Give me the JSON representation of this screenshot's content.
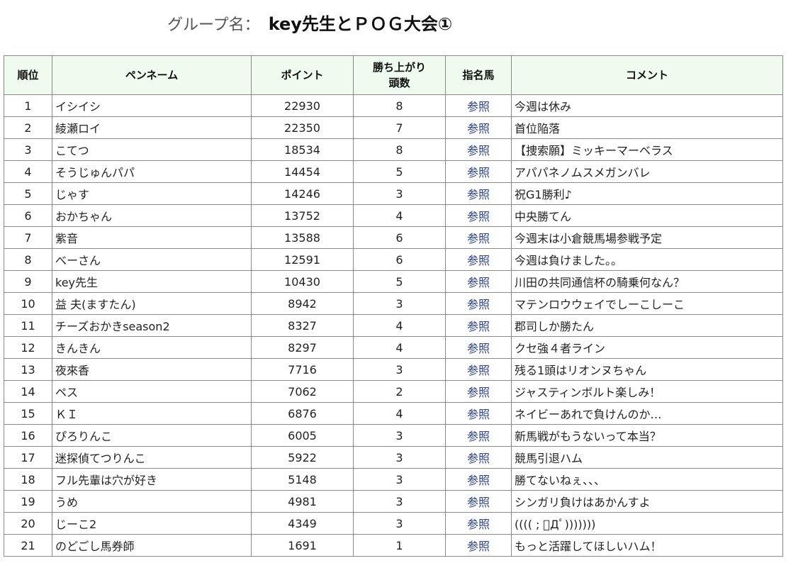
{
  "header": {
    "group_label": "グループ名：",
    "group_name": "key先生とＰＯＧ大会①"
  },
  "table": {
    "columns": {
      "rank": "順位",
      "penname": "ペンネーム",
      "points": "ポイント",
      "wins_line1": "勝ち上がり",
      "wins_line2": "頭数",
      "horses": "指名馬",
      "comment": "コメント"
    },
    "link_label": "参照",
    "rows": [
      {
        "rank": "1",
        "name": "イシイシ",
        "points": "22930",
        "wins": "8",
        "comment": "今週は休み"
      },
      {
        "rank": "2",
        "name": "綾瀬ロイ",
        "points": "22350",
        "wins": "7",
        "comment": "首位陥落"
      },
      {
        "rank": "3",
        "name": "こてつ",
        "points": "18534",
        "wins": "8",
        "comment": "【捜索願】ミッキーマーベラス"
      },
      {
        "rank": "4",
        "name": "そうじゅんパパ",
        "points": "14454",
        "wins": "5",
        "comment": "アパパネノムスメガンバレ"
      },
      {
        "rank": "5",
        "name": "じゃす",
        "points": "14246",
        "wins": "3",
        "comment": "祝G1勝利♪"
      },
      {
        "rank": "6",
        "name": "おかちゃん",
        "points": "13752",
        "wins": "4",
        "comment": "中央勝てん"
      },
      {
        "rank": "7",
        "name": "紫音",
        "points": "13588",
        "wins": "6",
        "comment": "今週末は小倉競馬場参戦予定"
      },
      {
        "rank": "8",
        "name": "べーさん",
        "points": "12591",
        "wins": "6",
        "comment": "今週は負けました。。"
      },
      {
        "rank": "9",
        "name": "key先生",
        "points": "10430",
        "wins": "5",
        "comment": "川田の共同通信杯の騎乗何なん？"
      },
      {
        "rank": "10",
        "name": "益 夫(ますたん)",
        "points": "8942",
        "wins": "3",
        "comment": "マテンロウウェイでしーこしーこ"
      },
      {
        "rank": "11",
        "name": "チーズおかきseason2",
        "points": "8327",
        "wins": "4",
        "comment": "郡司しか勝たん"
      },
      {
        "rank": "12",
        "name": "きんきん",
        "points": "8297",
        "wins": "4",
        "comment": "クセ強４者ライン"
      },
      {
        "rank": "13",
        "name": "夜來香",
        "points": "7716",
        "wins": "3",
        "comment": "残る1頭はリオンヌちゃん"
      },
      {
        "rank": "14",
        "name": "ペス",
        "points": "7062",
        "wins": "2",
        "comment": "ジャスティンボルト楽しみ！"
      },
      {
        "rank": "15",
        "name": "ＫＩ",
        "points": "6876",
        "wins": "4",
        "comment": "ネイビーあれで負けんのか…"
      },
      {
        "rank": "16",
        "name": "ぴろりんこ",
        "points": "6005",
        "wins": "3",
        "comment": "新馬戦がもうないって本当？"
      },
      {
        "rank": "17",
        "name": "迷探偵てつりんこ",
        "points": "5922",
        "wins": "3",
        "comment": "競馬引退ハム"
      },
      {
        "rank": "18",
        "name": "フル先輩は穴が好き",
        "points": "5148",
        "wins": "3",
        "comment": "勝てないねぇ、、、"
      },
      {
        "rank": "19",
        "name": "うめ",
        "points": "4981",
        "wins": "3",
        "comment": "シンガリ負けはあかんすよ"
      },
      {
        "rank": "20",
        "name": "じーこ2",
        "points": "4349",
        "wins": "3",
        "comment": "(((( ; ﾟДﾟ)))))))"
      },
      {
        "rank": "21",
        "name": "のどごし馬券師",
        "points": "1691",
        "wins": "1",
        "comment": "もっと活躍してほしいハム！"
      }
    ]
  }
}
